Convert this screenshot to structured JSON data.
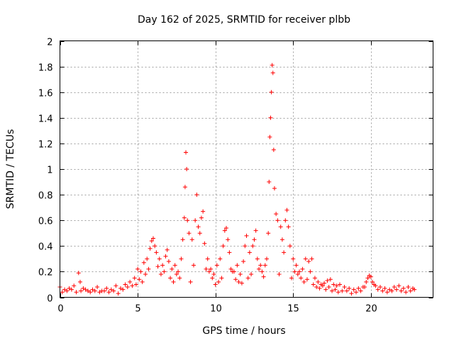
{
  "chart_data": {
    "type": "scatter",
    "title": "Day 162 of 2025, SRMTID for receiver plbb",
    "xlabel": "GPS time / hours",
    "ylabel": "SRMTID / TECUs",
    "xlim": [
      0,
      24
    ],
    "ylim": [
      0,
      2
    ],
    "xticks": [
      0,
      5,
      10,
      15,
      20
    ],
    "xtick_labels": [
      "0",
      "5",
      "10",
      "15",
      "20"
    ],
    "yticks": [
      0,
      0.2,
      0.4,
      0.6,
      0.8,
      1,
      1.2,
      1.4,
      1.6,
      1.8,
      2
    ],
    "ytick_labels": [
      "0",
      "0.2",
      "0.4",
      "0.6",
      "0.8",
      "1",
      "1.2",
      "1.4",
      "1.6",
      "1.8",
      "2"
    ],
    "grid": true,
    "marker": "+",
    "color": "#ff0000",
    "series": [
      {
        "name": "SRMTID",
        "x": [
          0.0,
          0.3,
          0.6,
          0.9,
          1.2,
          1.3,
          1.5,
          1.8,
          2.1,
          2.4,
          2.7,
          3.0,
          3.3,
          3.6,
          3.9,
          4.2,
          4.5,
          4.8,
          5.0,
          5.2,
          5.4,
          5.6,
          5.8,
          5.9,
          6.0,
          6.1,
          6.2,
          6.4,
          6.6,
          6.8,
          6.9,
          7.0,
          7.2,
          7.4,
          7.6,
          7.8,
          7.9,
          8.0,
          8.05,
          8.1,
          8.15,
          8.2,
          8.3,
          8.5,
          8.7,
          8.8,
          8.9,
          9.0,
          9.1,
          9.2,
          9.3,
          9.5,
          9.7,
          9.9,
          10.1,
          10.3,
          10.5,
          10.6,
          10.7,
          10.8,
          10.9,
          11.0,
          11.2,
          11.4,
          11.6,
          11.8,
          11.9,
          12.0,
          12.2,
          12.4,
          12.5,
          12.6,
          12.7,
          12.9,
          13.0,
          13.2,
          13.3,
          13.4,
          13.45,
          13.5,
          13.55,
          13.6,
          13.65,
          13.7,
          13.75,
          13.8,
          13.9,
          14.0,
          14.2,
          14.3,
          14.4,
          14.5,
          14.6,
          14.7,
          14.8,
          15.0,
          15.2,
          15.4,
          15.6,
          15.8,
          16.0,
          16.1,
          16.2,
          16.4,
          16.6,
          16.8,
          17.0,
          17.2,
          17.4,
          17.6,
          17.8,
          18.0,
          18.3,
          18.6,
          18.9,
          19.2,
          19.5,
          19.7,
          19.8,
          19.9,
          20.0,
          20.1,
          20.3,
          20.6,
          20.9,
          21.2,
          21.5,
          21.8,
          22.1,
          22.4,
          22.7,
          0.15,
          0.45,
          0.75,
          1.05,
          1.35,
          1.65,
          1.95,
          2.25,
          2.55,
          2.85,
          3.15,
          3.45,
          3.75,
          4.05,
          4.35,
          4.65,
          4.9,
          5.1,
          5.3,
          5.5,
          5.7,
          6.3,
          6.5,
          6.7,
          7.1,
          7.3,
          7.5,
          7.7,
          8.4,
          8.6,
          9.4,
          9.6,
          9.8,
          10.0,
          10.2,
          10.4,
          11.1,
          11.3,
          11.5,
          11.7,
          12.1,
          12.3,
          12.8,
          13.1,
          14.1,
          14.9,
          15.1,
          15.3,
          15.5,
          15.7,
          15.9,
          16.3,
          16.5,
          16.7,
          16.9,
          17.1,
          17.3,
          17.5,
          17.7,
          17.9,
          18.15,
          18.45,
          18.75,
          19.05,
          19.35,
          19.6,
          20.2,
          20.45,
          20.75,
          21.05,
          21.35,
          21.65,
          21.95,
          22.25,
          22.55,
          22.8
        ],
        "y": [
          0.08,
          0.06,
          0.07,
          0.09,
          0.19,
          0.12,
          0.07,
          0.05,
          0.06,
          0.08,
          0.05,
          0.07,
          0.06,
          0.09,
          0.07,
          0.1,
          0.12,
          0.15,
          0.22,
          0.2,
          0.27,
          0.3,
          0.38,
          0.44,
          0.46,
          0.4,
          0.35,
          0.3,
          0.25,
          0.32,
          0.37,
          0.28,
          0.22,
          0.25,
          0.2,
          0.3,
          0.45,
          0.62,
          0.86,
          1.13,
          1.0,
          0.6,
          0.5,
          0.45,
          0.6,
          0.8,
          0.55,
          0.5,
          0.62,
          0.67,
          0.42,
          0.3,
          0.22,
          0.18,
          0.25,
          0.3,
          0.4,
          0.52,
          0.54,
          0.45,
          0.35,
          0.22,
          0.2,
          0.25,
          0.18,
          0.28,
          0.4,
          0.48,
          0.35,
          0.4,
          0.45,
          0.52,
          0.3,
          0.25,
          0.2,
          0.25,
          0.3,
          0.5,
          0.9,
          1.25,
          1.4,
          1.6,
          1.81,
          1.75,
          1.15,
          0.85,
          0.65,
          0.6,
          0.55,
          0.45,
          0.35,
          0.6,
          0.68,
          0.55,
          0.4,
          0.3,
          0.25,
          0.2,
          0.22,
          0.3,
          0.28,
          0.2,
          0.3,
          0.15,
          0.12,
          0.1,
          0.11,
          0.13,
          0.14,
          0.1,
          0.09,
          0.1,
          0.08,
          0.07,
          0.06,
          0.07,
          0.08,
          0.12,
          0.15,
          0.17,
          0.16,
          0.12,
          0.09,
          0.08,
          0.07,
          0.06,
          0.08,
          0.09,
          0.07,
          0.08,
          0.07,
          0.04,
          0.05,
          0.06,
          0.04,
          0.05,
          0.06,
          0.04,
          0.05,
          0.04,
          0.05,
          0.04,
          0.05,
          0.03,
          0.06,
          0.08,
          0.09,
          0.1,
          0.14,
          0.12,
          0.18,
          0.22,
          0.24,
          0.18,
          0.2,
          0.15,
          0.12,
          0.18,
          0.15,
          0.12,
          0.25,
          0.22,
          0.2,
          0.15,
          0.1,
          0.12,
          0.15,
          0.2,
          0.14,
          0.12,
          0.11,
          0.15,
          0.18,
          0.22,
          0.16,
          0.18,
          0.15,
          0.2,
          0.18,
          0.15,
          0.12,
          0.14,
          0.1,
          0.08,
          0.07,
          0.09,
          0.06,
          0.08,
          0.05,
          0.06,
          0.04,
          0.05,
          0.05,
          0.03,
          0.04,
          0.05,
          0.08,
          0.1,
          0.06,
          0.05,
          0.04,
          0.05,
          0.06,
          0.05,
          0.04,
          0.05,
          0.06
        ]
      }
    ]
  }
}
